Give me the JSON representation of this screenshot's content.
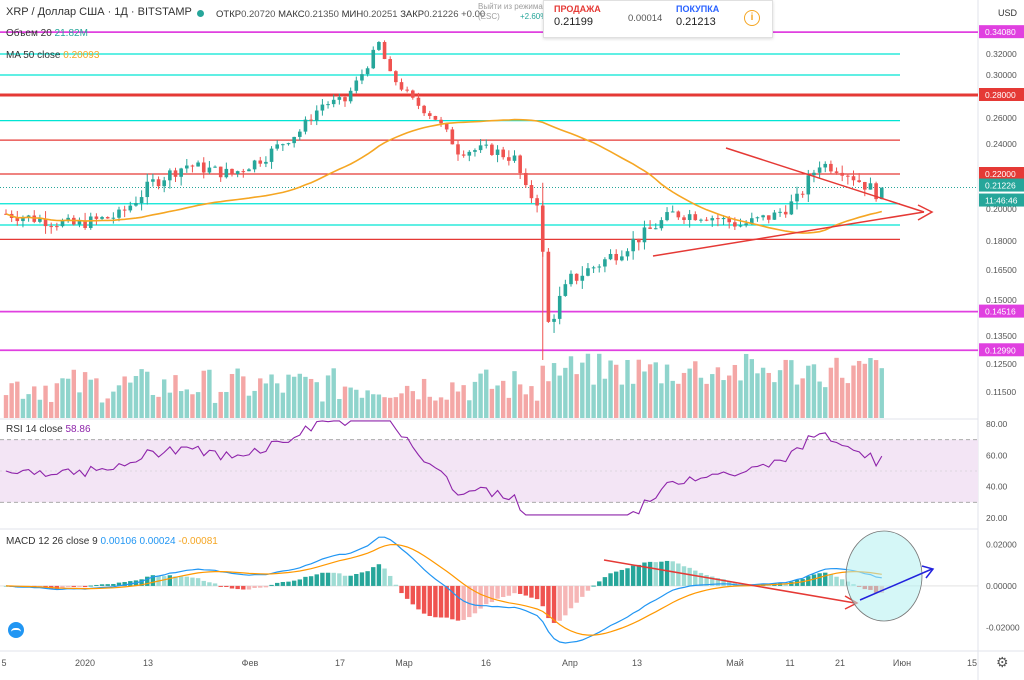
{
  "header": {
    "ticker": "XRP / Доллар США · 1Д · BITSTAMP",
    "ohlc": [
      {
        "label": "ОТКР",
        "value": "0.20720"
      },
      {
        "label": "МАКС",
        "value": "0.21350"
      },
      {
        "label": "МИН",
        "value": "0.20251"
      },
      {
        "label": "ЗАКР",
        "value": "0.21226 +0.00"
      }
    ],
    "ghost_text": "Выйти из режима\n(ESC)",
    "ghost_change": "+2.60%"
  },
  "trade_panel": {
    "sell_label": "ПРОДАЖА",
    "sell_price": "0.21199",
    "spread": "0.00014",
    "buy_label": "ПОКУПКА",
    "buy_price": "0.21213"
  },
  "currency": "USD",
  "indicators": {
    "volume_label": "Объем 20",
    "volume_value": "21.82M",
    "ma_label": "MA 50 close",
    "ma_value": "0.20093",
    "rsi_label": "RSI 14 close",
    "rsi_value": "58.86",
    "macd_label": "MACD 12 26 close 9",
    "macd_values": [
      "0.00106",
      "0.00024",
      "-0.00081"
    ]
  },
  "colors": {
    "up": "#26a69a",
    "down": "#ef5350",
    "vol_up": "#8fd4cc",
    "vol_down": "#f4a7a6",
    "ma": "#f5a623",
    "rsi": "#8e24aa",
    "macd": "#2196f3",
    "signal": "#ff9800",
    "resistance": "#e53935",
    "support_aqua": "#00e5d4",
    "magenta": "#e040e0",
    "annotation": "#e53935",
    "ellipse_fill": "#b3f0f0"
  },
  "chart_data": [
    {
      "type": "candlestick",
      "title": "XRP / Доллар США · 1Д · BITSTAMP",
      "y_ticks": [
        "0.32000",
        "0.30000",
        "0.28000",
        "0.26000",
        "0.24000",
        "0.22000",
        "0.21226",
        "0.20000",
        "0.18000",
        "0.16500",
        "0.15000",
        "0.13500",
        "0.12500",
        "0.11500"
      ],
      "price_tag_labels": [
        {
          "value": "0.34080",
          "color": "#e040e0"
        },
        {
          "value": "0.28000",
          "color": "#e53935"
        },
        {
          "value": "0.22000",
          "color": "#e53935"
        },
        {
          "value": "0.21226",
          "color": "#26a69a"
        },
        {
          "value": "11:46:46",
          "color": "#26a69a"
        },
        {
          "value": "0.14516",
          "color": "#e040e0"
        },
        {
          "value": "0.12990",
          "color": "#e040e0"
        }
      ],
      "x_ticks": [
        "5",
        "2020",
        "13",
        "Фев",
        "17",
        "Мар",
        "16",
        "Апр",
        "13",
        "Май",
        "11",
        "21",
        "Июн",
        "15"
      ],
      "horizontal_levels": [
        {
          "value": 0.3408,
          "color": "magenta"
        },
        {
          "value": 0.32,
          "color": "aqua"
        },
        {
          "value": 0.3,
          "color": "aqua"
        },
        {
          "value": 0.28,
          "color": "red_thick"
        },
        {
          "value": 0.258,
          "color": "aqua"
        },
        {
          "value": 0.243,
          "color": "red"
        },
        {
          "value": 0.22,
          "color": "red"
        },
        {
          "value": 0.203,
          "color": "aqua"
        },
        {
          "value": 0.19,
          "color": "aqua"
        },
        {
          "value": 0.181,
          "color": "red"
        },
        {
          "value": 0.14516,
          "color": "magenta"
        },
        {
          "value": 0.1299,
          "color": "magenta"
        }
      ],
      "last_close": 0.21226,
      "ma50_last": 0.20093,
      "annotation": "symmetrical triangle with breakout arrow"
    },
    {
      "type": "bar",
      "title": "Объем 20",
      "last_value": "21.82M"
    },
    {
      "type": "line",
      "title": "RSI 14 close",
      "y_ticks": [
        "80.00",
        "60.00",
        "40.00",
        "20.00"
      ],
      "band": [
        30,
        70
      ],
      "last_value": 58.86
    },
    {
      "type": "line",
      "title": "MACD 12 26 close 9",
      "y_ticks": [
        "0.02000",
        "0.00000",
        "-0.02000"
      ],
      "series": [
        {
          "name": "MACD",
          "last": 0.00106
        },
        {
          "name": "Signal",
          "last": 0.00024
        },
        {
          "name": "Histogram",
          "last": -0.00081
        }
      ]
    }
  ]
}
